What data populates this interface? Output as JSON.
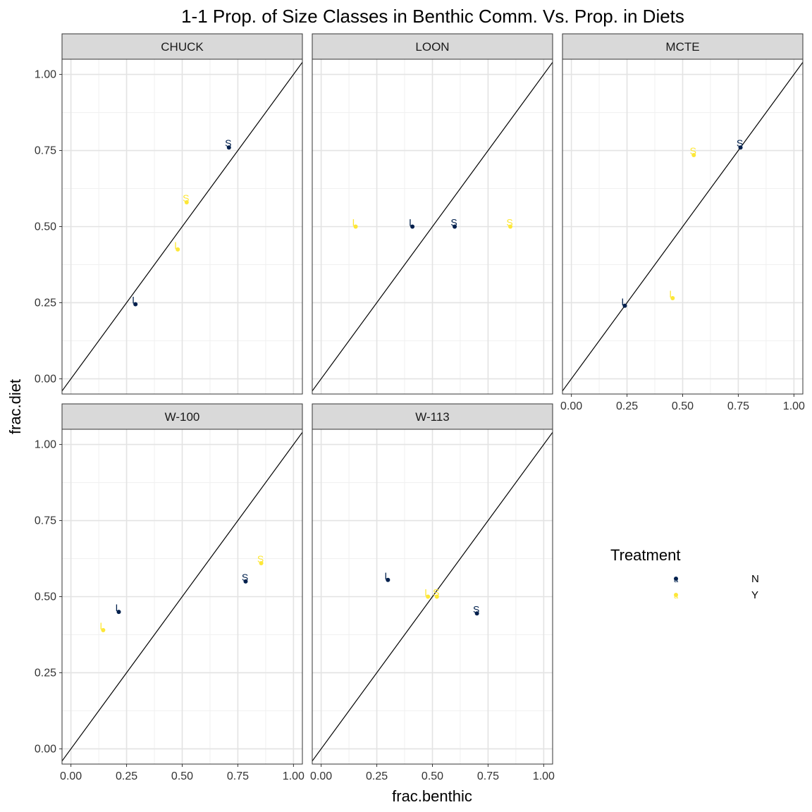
{
  "chart_data": {
    "type": "scatter",
    "title": "1-1 Prop. of Size Classes in Benthic Comm. Vs. Prop. in Diets",
    "xlabel": "frac.benthic",
    "ylabel": "frac.diet",
    "xlim": [
      -0.04,
      1.04
    ],
    "ylim": [
      -0.05,
      1.05
    ],
    "x_ticks": [
      "0.00",
      "0.25",
      "0.50",
      "0.75",
      "1.00"
    ],
    "y_ticks": [
      "0.00",
      "0.25",
      "0.50",
      "0.75",
      "1.00"
    ],
    "grid": true,
    "reference_line": "y = x",
    "legend": {
      "title": "Treatment",
      "placement": "right",
      "entries": [
        {
          "key": "N",
          "label": "N",
          "color": "#00204d"
        },
        {
          "key": "Y",
          "label": "Y",
          "color": "#fde737"
        }
      ]
    },
    "panels": [
      {
        "name": "CHUCK",
        "points": [
          {
            "x": 0.29,
            "y": 0.245,
            "size_class": "L",
            "treatment": "N"
          },
          {
            "x": 0.71,
            "y": 0.76,
            "size_class": "S",
            "treatment": "N"
          },
          {
            "x": 0.48,
            "y": 0.425,
            "size_class": "L",
            "treatment": "Y"
          },
          {
            "x": 0.52,
            "y": 0.58,
            "size_class": "S",
            "treatment": "Y"
          }
        ]
      },
      {
        "name": "LOON",
        "points": [
          {
            "x": 0.41,
            "y": 0.5,
            "size_class": "L",
            "treatment": "N"
          },
          {
            "x": 0.6,
            "y": 0.5,
            "size_class": "S",
            "treatment": "N"
          },
          {
            "x": 0.155,
            "y": 0.5,
            "size_class": "L",
            "treatment": "Y"
          },
          {
            "x": 0.85,
            "y": 0.5,
            "size_class": "S",
            "treatment": "Y"
          }
        ]
      },
      {
        "name": "MCTE",
        "points": [
          {
            "x": 0.24,
            "y": 0.24,
            "size_class": "L",
            "treatment": "N"
          },
          {
            "x": 0.76,
            "y": 0.76,
            "size_class": "S",
            "treatment": "N"
          },
          {
            "x": 0.455,
            "y": 0.265,
            "size_class": "L",
            "treatment": "Y"
          },
          {
            "x": 0.55,
            "y": 0.735,
            "size_class": "S",
            "treatment": "Y"
          }
        ]
      },
      {
        "name": "W-100",
        "points": [
          {
            "x": 0.215,
            "y": 0.45,
            "size_class": "L",
            "treatment": "N"
          },
          {
            "x": 0.785,
            "y": 0.55,
            "size_class": "S",
            "treatment": "N"
          },
          {
            "x": 0.145,
            "y": 0.39,
            "size_class": "L",
            "treatment": "Y"
          },
          {
            "x": 0.855,
            "y": 0.61,
            "size_class": "S",
            "treatment": "Y"
          }
        ]
      },
      {
        "name": "W-113",
        "points": [
          {
            "x": 0.3,
            "y": 0.555,
            "size_class": "L",
            "treatment": "N"
          },
          {
            "x": 0.7,
            "y": 0.445,
            "size_class": "S",
            "treatment": "N"
          },
          {
            "x": 0.48,
            "y": 0.5,
            "size_class": "L",
            "treatment": "Y"
          },
          {
            "x": 0.52,
            "y": 0.5,
            "size_class": "S",
            "treatment": "Y"
          }
        ]
      }
    ]
  }
}
